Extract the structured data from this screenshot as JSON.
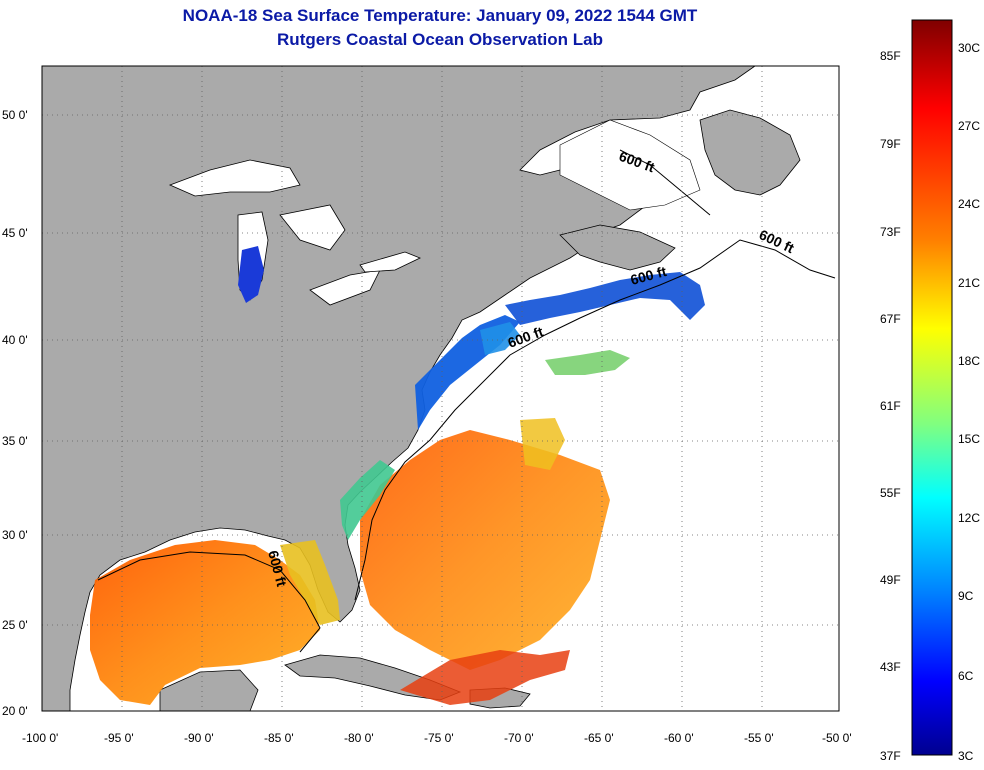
{
  "header": {
    "title": "NOAA-18 Sea Surface Temperature:  January 09, 2022 1544 GMT",
    "subtitle": "Rutgers Coastal Ocean Observation Lab"
  },
  "map": {
    "lat_ticks": [
      "50 0'",
      "45 0'",
      "40 0'",
      "35 0'",
      "30 0'",
      "25 0'",
      "20 0'"
    ],
    "lon_ticks": [
      "-100 0'",
      "-95 0'",
      "-90 0'",
      "-85 0'",
      "-80 0'",
      "-75 0'",
      "-70 0'",
      "-65 0'",
      "-60 0'",
      "-55 0'",
      "-50 0'"
    ],
    "contour_labels": [
      "600 ft",
      "600 ft",
      "600 ft",
      "600 ft",
      "600 ft"
    ],
    "colors": {
      "land": "#aaaaaa",
      "water_nodata": "#ffffff"
    }
  },
  "colorbar": {
    "fahrenheit": [
      "85F",
      "79F",
      "73F",
      "67F",
      "61F",
      "55F",
      "49F",
      "43F",
      "37F"
    ],
    "celsius": [
      "30C",
      "27C",
      "24C",
      "21C",
      "18C",
      "15C",
      "12C",
      "9C",
      "6C",
      "3C"
    ],
    "gradient": [
      "#7f0000",
      "#ff0000",
      "#ff8000",
      "#ffff00",
      "#80ff80",
      "#00ffff",
      "#0080ff",
      "#0000ff",
      "#00008f"
    ]
  }
}
